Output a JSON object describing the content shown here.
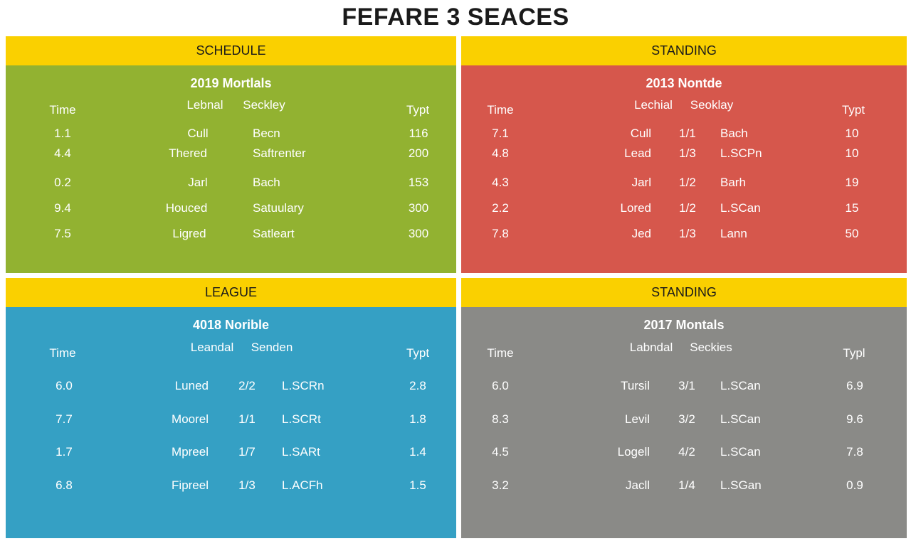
{
  "page_title": "FEFARE 3 SEACES",
  "colors": {
    "header_yellow": "#fad000",
    "green": "#92b231",
    "red": "#d6574c",
    "blue": "#35a0c4",
    "gray": "#8a8a87"
  },
  "panels": [
    {
      "header": "SCHEDULE",
      "subtitle": "2019 Mortlals",
      "columns": [
        "Time",
        "Lebnal",
        "Seckley",
        "Typt"
      ],
      "rows": [
        {
          "time": "1.1",
          "name": "Cull",
          "detail": "Becn",
          "value": "116"
        },
        {
          "time": "4.4",
          "name": "Thered",
          "detail": "Saftrenter",
          "value": "200"
        },
        {
          "time": "0.2",
          "name": "Jarl",
          "detail": "Bach",
          "value": "153"
        },
        {
          "time": "9.4",
          "name": "Houced",
          "detail": "Satuulary",
          "value": "300"
        },
        {
          "time": "7.5",
          "name": "Ligred",
          "detail": "Satleart",
          "value": "300"
        }
      ]
    },
    {
      "header": "STANDING",
      "subtitle": "2013 Nontde",
      "columns": [
        "Time",
        "Lechial",
        "Seoklay",
        "Typt"
      ],
      "rows": [
        {
          "time": "7.1",
          "name": "Cull",
          "score": "1/1",
          "detail": "Bach",
          "value": "10"
        },
        {
          "time": "4.8",
          "name": "Lead",
          "score": "1/3",
          "detail": "L.SCPn",
          "value": "10"
        },
        {
          "time": "4.3",
          "name": "Jarl",
          "score": "1/2",
          "detail": "Barh",
          "value": "19"
        },
        {
          "time": "2.2",
          "name": "Lored",
          "score": "1/2",
          "detail": "L.SCan",
          "value": "15"
        },
        {
          "time": "7.8",
          "name": "Jed",
          "score": "1/3",
          "detail": "Lann",
          "value": "50"
        }
      ]
    },
    {
      "header": "LEAGUE",
      "subtitle": "4018 Norible",
      "columns": [
        "Time",
        "Leandal",
        "Senden",
        "Typt"
      ],
      "rows": [
        {
          "time": "6.0",
          "name": "Luned",
          "score": "2/2",
          "detail": "L.SCRn",
          "value": "2.8"
        },
        {
          "time": "7.7",
          "name": "Moorel",
          "score": "1/1",
          "detail": "L.SCRt",
          "value": "1.8"
        },
        {
          "time": "1.7",
          "name": "Mpreel",
          "score": "1/7",
          "detail": "L.SARt",
          "value": "1.4"
        },
        {
          "time": "6.8",
          "name": "Fipreel",
          "score": "1/3",
          "detail": "L.ACFh",
          "value": "1.5"
        }
      ]
    },
    {
      "header": "STANDING",
      "subtitle": "2017 Montals",
      "columns": [
        "Time",
        "Labndal",
        "Seckies",
        "Typl"
      ],
      "rows": [
        {
          "time": "6.0",
          "name": "Tursil",
          "score": "3/1",
          "detail": "L.SCan",
          "value": "6.9"
        },
        {
          "time": "8.3",
          "name": "Levil",
          "score": "3/2",
          "detail": "L.SCan",
          "value": "9.6"
        },
        {
          "time": "4.5",
          "name": "Logell",
          "score": "4/2",
          "detail": "L.SCan",
          "value": "7.8"
        },
        {
          "time": "3.2",
          "name": "Jacll",
          "score": "1/4",
          "detail": "L.SGan",
          "value": "0.9"
        }
      ]
    }
  ]
}
